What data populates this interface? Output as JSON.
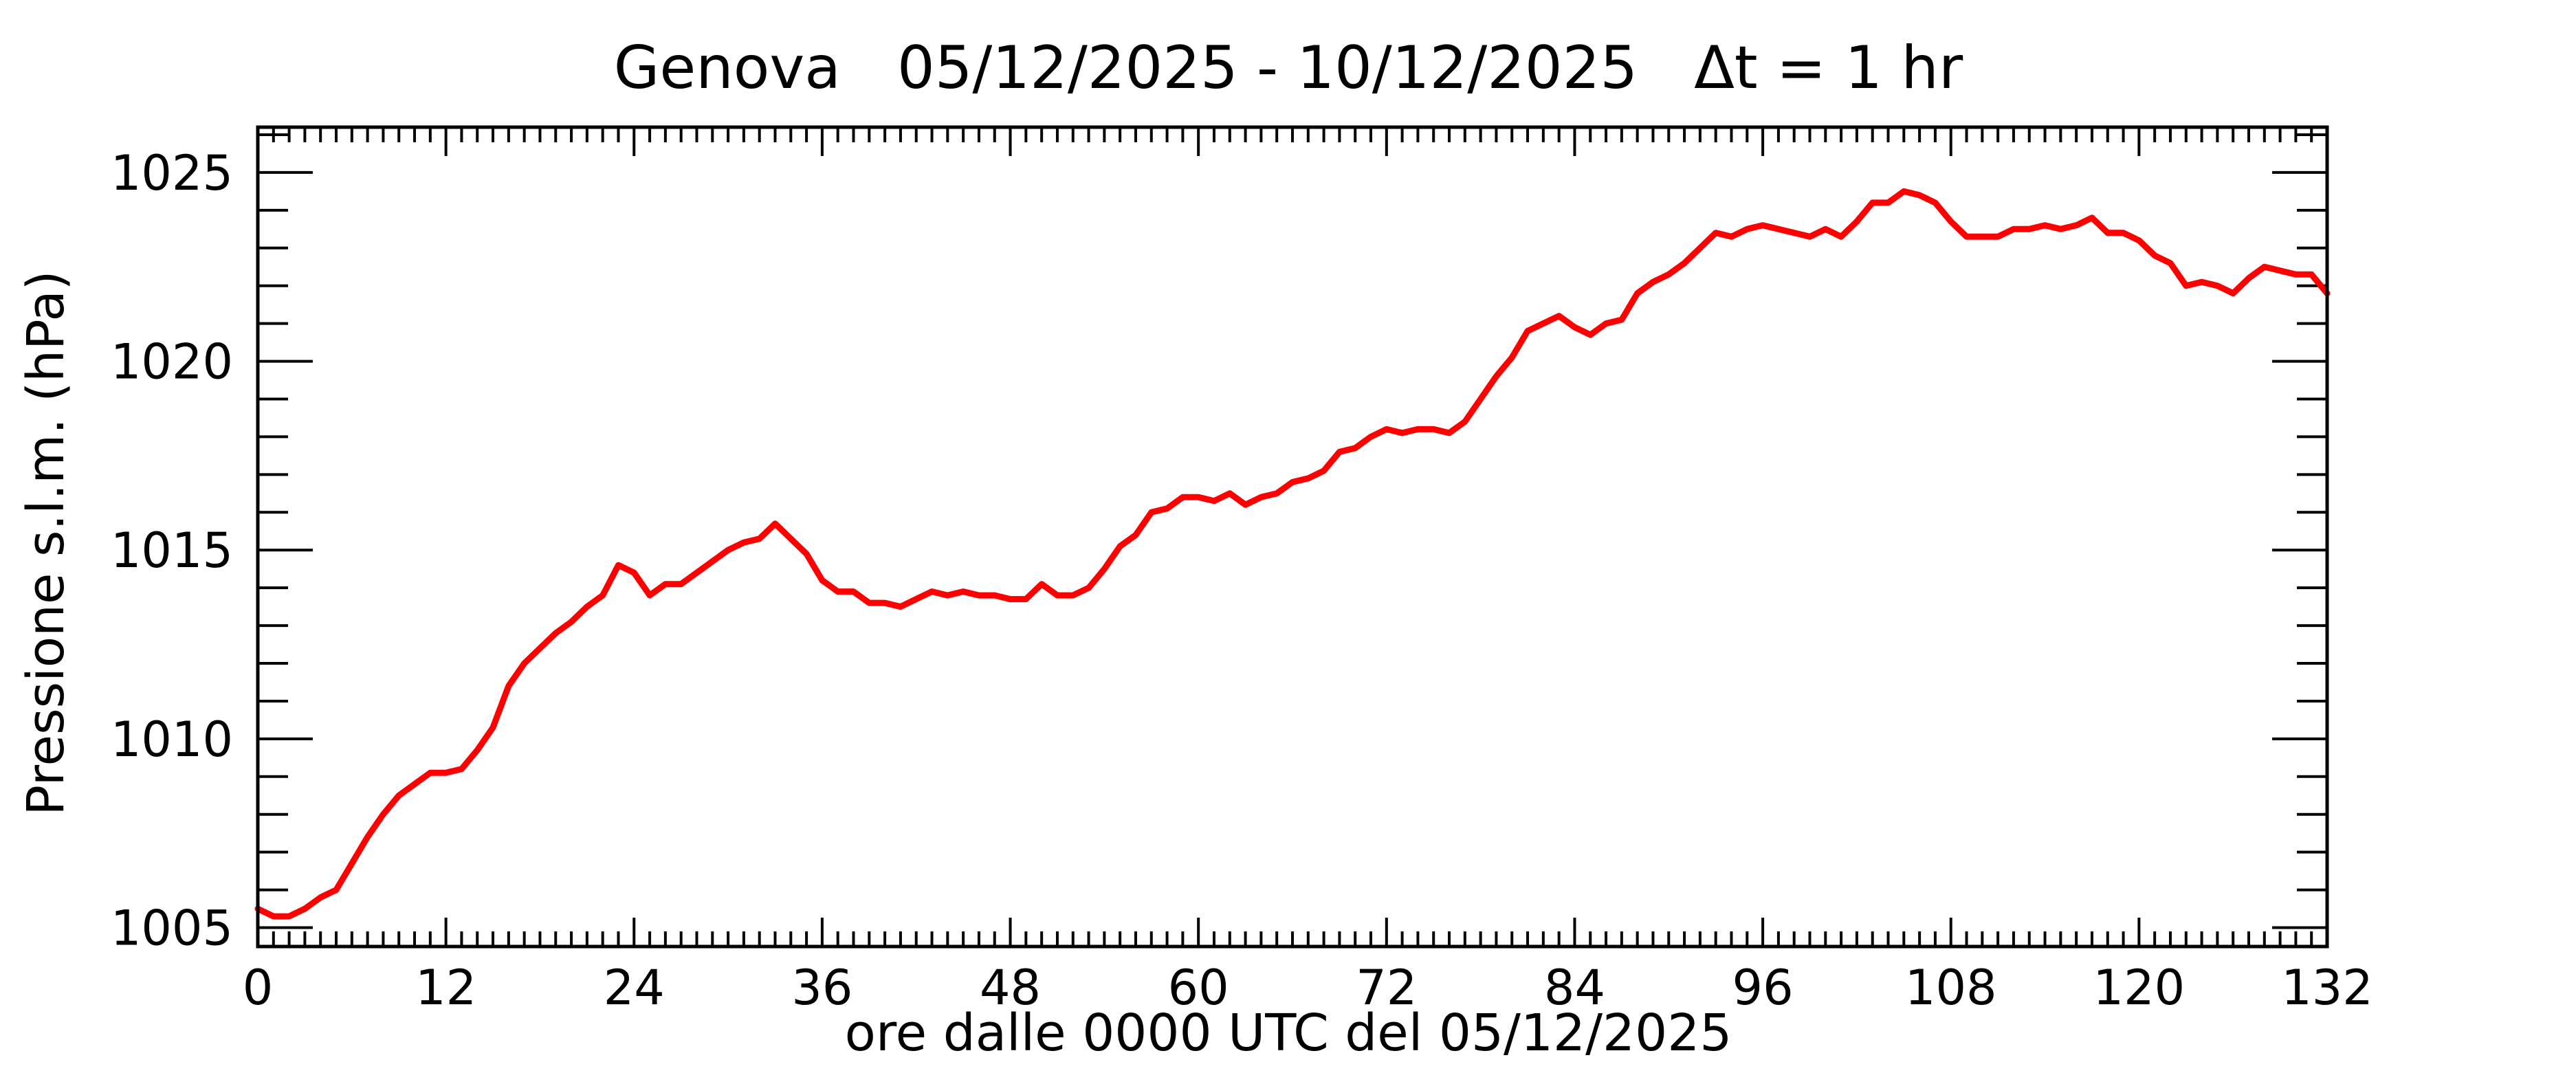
{
  "chart_data": {
    "type": "line",
    "title": "Genova   05/12/2025 - 10/12/2025   Δt = 1 hr",
    "xlabel": "ore dalle 0000 UTC del 05/12/2025",
    "ylabel": "Pressione s.l.m. (hPa)",
    "xlim": [
      0,
      132
    ],
    "ylim": [
      1004.5,
      1026.2
    ],
    "x_ticks": [
      "0",
      "12",
      "24",
      "36",
      "48",
      "60",
      "72",
      "84",
      "96",
      "108",
      "120",
      "132"
    ],
    "y_ticks": [
      "1005",
      "1010",
      "1015",
      "1020",
      "1025"
    ],
    "x_minor_step": 1,
    "y_minor_step": 1,
    "grid": false,
    "colors": {
      "series": "#ff0000",
      "axes": "#000000",
      "background": "#ffffff"
    },
    "series": [
      {
        "x": [
          0,
          1,
          2,
          3,
          4,
          5,
          6,
          7,
          8,
          9,
          10,
          11,
          12,
          13,
          14,
          15,
          16,
          17,
          18,
          19,
          20,
          21,
          22,
          23,
          24,
          25,
          26,
          27,
          28,
          29,
          30,
          31,
          32,
          33,
          34,
          35,
          36,
          37,
          38,
          39,
          40,
          41,
          42,
          43,
          44,
          45,
          46,
          47,
          48,
          49,
          50,
          51,
          52,
          53,
          54,
          55,
          56,
          57,
          58,
          59,
          60,
          61,
          62,
          63,
          64,
          65,
          66,
          67,
          68,
          69,
          70,
          71,
          72,
          73,
          74,
          75,
          76,
          77,
          78,
          79,
          80,
          81,
          82,
          83,
          84,
          85,
          86,
          87,
          88,
          89,
          90,
          91,
          92,
          93,
          94,
          95,
          96,
          97,
          98,
          99,
          100,
          101,
          102,
          103,
          104,
          105,
          106,
          107,
          108,
          109,
          110,
          111,
          112,
          113,
          114,
          115,
          116,
          117,
          118,
          119,
          120,
          121,
          122,
          123,
          124,
          125,
          126,
          127,
          128,
          129,
          130,
          131,
          132
        ],
        "values": [
          1005.5,
          1005.3,
          1005.3,
          1005.5,
          1005.8,
          1006.0,
          1006.7,
          1007.4,
          1008.0,
          1008.5,
          1008.8,
          1009.1,
          1009.1,
          1009.2,
          1009.7,
          1010.3,
          1011.4,
          1012.0,
          1012.4,
          1012.8,
          1013.1,
          1013.5,
          1013.8,
          1014.6,
          1014.4,
          1013.8,
          1014.1,
          1014.1,
          1014.4,
          1014.7,
          1015.0,
          1015.2,
          1015.3,
          1015.7,
          1015.3,
          1014.9,
          1014.2,
          1013.9,
          1013.9,
          1013.6,
          1013.6,
          1013.5,
          1013.7,
          1013.9,
          1013.8,
          1013.9,
          1013.8,
          1013.8,
          1013.7,
          1013.7,
          1014.1,
          1013.8,
          1013.8,
          1014.0,
          1014.5,
          1015.1,
          1015.4,
          1016.0,
          1016.1,
          1016.4,
          1016.4,
          1016.3,
          1016.5,
          1016.2,
          1016.4,
          1016.5,
          1016.8,
          1016.9,
          1017.1,
          1017.6,
          1017.7,
          1018.0,
          1018.2,
          1018.1,
          1018.2,
          1018.2,
          1018.1,
          1018.4,
          1019.0,
          1019.6,
          1020.1,
          1020.8,
          1021.0,
          1021.2,
          1020.9,
          1020.7,
          1021.0,
          1021.1,
          1021.8,
          1022.1,
          1022.3,
          1022.6,
          1023.0,
          1023.4,
          1023.3,
          1023.5,
          1023.6,
          1023.5,
          1023.4,
          1023.3,
          1023.5,
          1023.3,
          1023.7,
          1024.2,
          1024.2,
          1024.5,
          1024.4,
          1024.2,
          1023.7,
          1023.3,
          1023.3,
          1023.3,
          1023.5,
          1023.5,
          1023.6,
          1023.5,
          1023.6,
          1023.8,
          1023.4,
          1023.4,
          1023.2,
          1022.8,
          1022.6,
          1022.0,
          1022.1,
          1022.0,
          1021.8,
          1022.2,
          1022.5,
          1022.4,
          1022.3,
          1022.3,
          1021.8
        ]
      }
    ]
  }
}
